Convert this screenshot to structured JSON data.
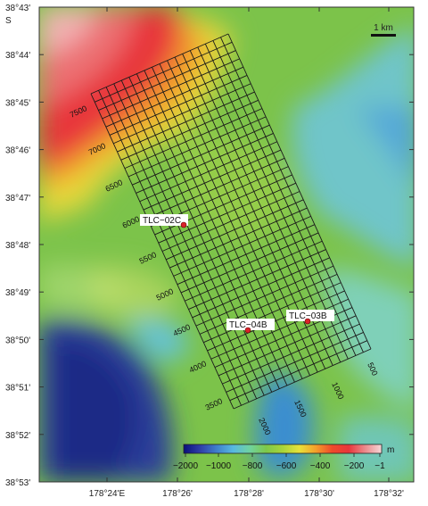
{
  "map": {
    "lat_labels": [
      "38°43'",
      "38°44'",
      "38°45'",
      "38°46'",
      "38°47'",
      "38°48'",
      "38°49'",
      "38°50'",
      "38°51'",
      "38°52'",
      "38°53'"
    ],
    "lat_hemisphere": "S",
    "lon_labels": [
      "178°24'E",
      "178°26'",
      "178°28'",
      "178°30'",
      "178°32'"
    ],
    "scale_bar_label": "1 km",
    "grid_labels_left": [
      "7500",
      "7000",
      "6500",
      "6000",
      "5500",
      "5000",
      "4500",
      "4000",
      "3500"
    ],
    "grid_labels_bottom": [
      "2000",
      "1500",
      "1000",
      "500"
    ],
    "sites": [
      {
        "id": "TLC−02C",
        "color": "#d9232a"
      },
      {
        "id": "TLC−04B",
        "color": "#d9232a"
      },
      {
        "id": "TLC−03B",
        "color": "#d9232a"
      }
    ],
    "colorbar": {
      "unit": "m",
      "tick_labels": [
        "−2000",
        "−1000",
        "−800",
        "−600",
        "−400",
        "−200",
        "−1"
      ],
      "colors": [
        "#0a0f7a",
        "#2f3ea8",
        "#3f7fcc",
        "#58b9e0",
        "#6fd3a0",
        "#7dc84a",
        "#a8d43a",
        "#e8e23a",
        "#f4a02a",
        "#ef4a2a",
        "#e8363b",
        "#ea8a8c",
        "#f6d7d8"
      ]
    }
  }
}
